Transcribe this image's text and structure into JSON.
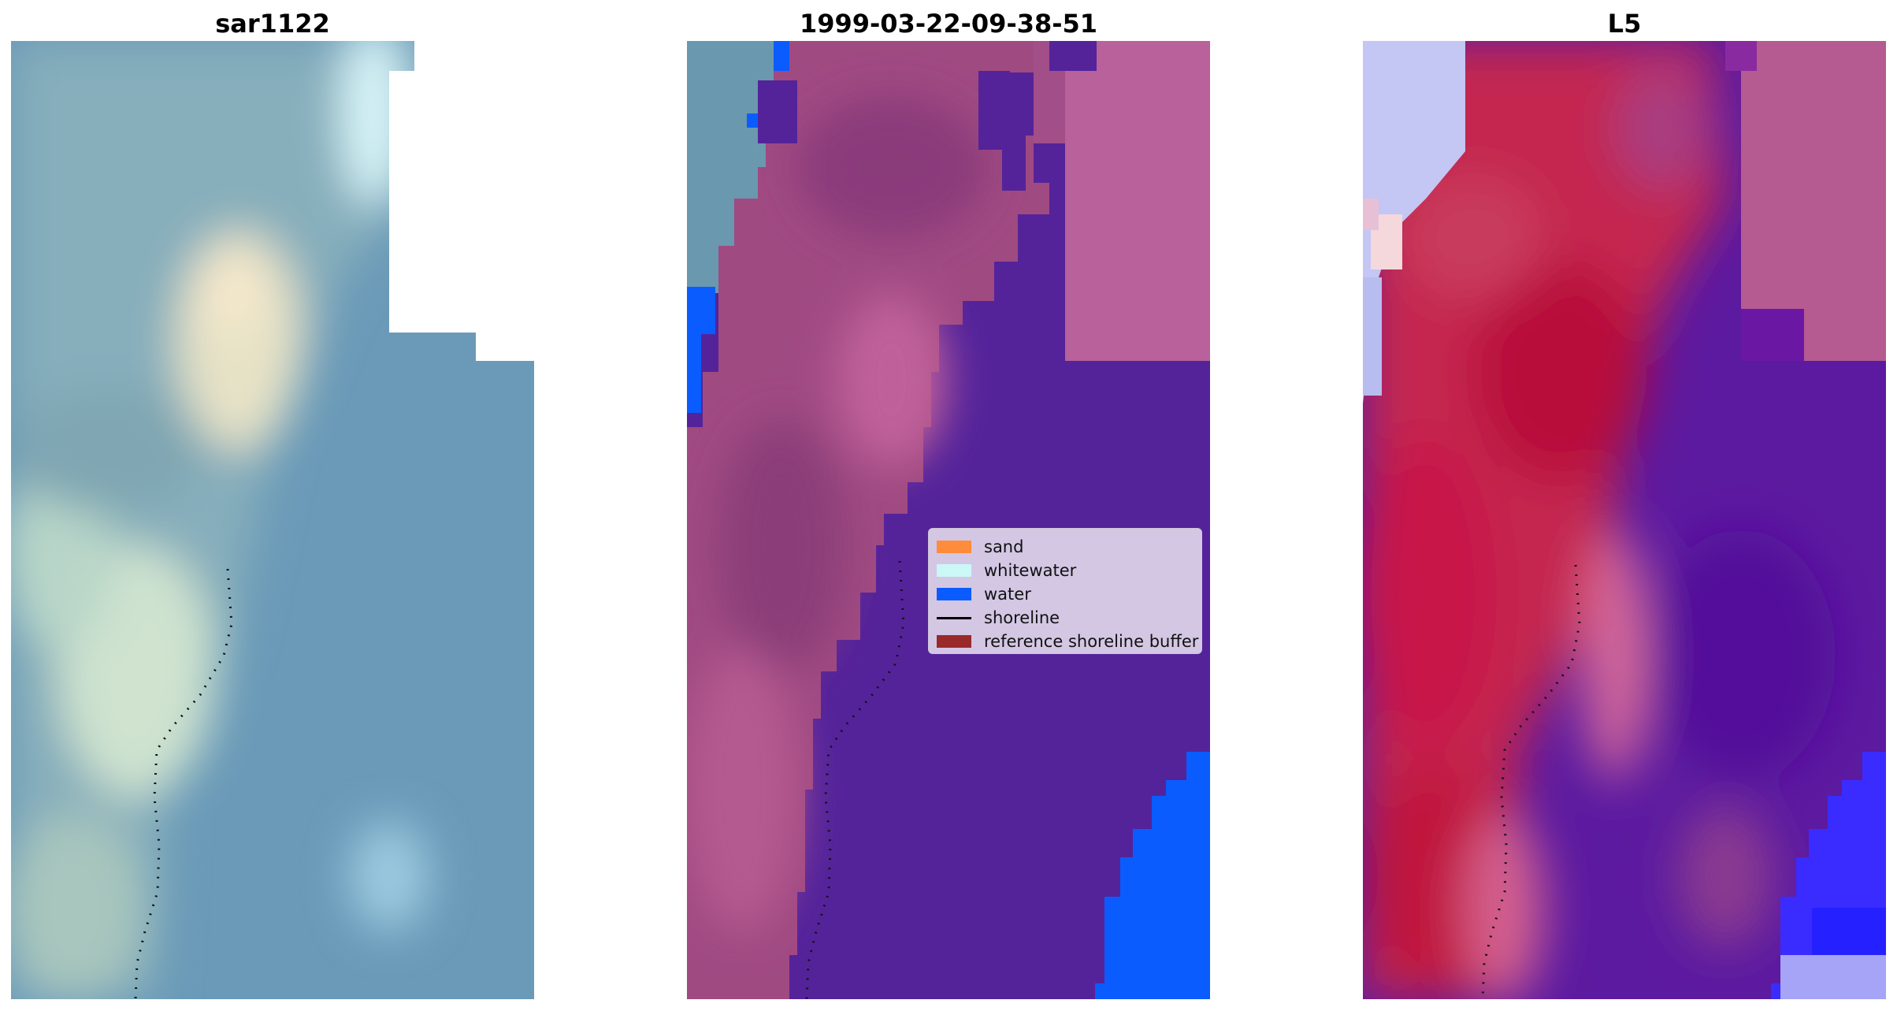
{
  "panels": [
    {
      "title": "sar1122"
    },
    {
      "title": "1999-03-22-09-38-51"
    },
    {
      "title": "L5"
    }
  ],
  "legend": {
    "items": [
      {
        "label": "sand",
        "color": "#ff8c3a",
        "kind": "patch"
      },
      {
        "label": "whitewater",
        "color": "#ccf7f7",
        "kind": "patch"
      },
      {
        "label": "water",
        "color": "#0a5cff",
        "kind": "patch"
      },
      {
        "label": "shoreline",
        "color": "#000000",
        "kind": "line"
      },
      {
        "label": "reference shoreline buffer",
        "color": "#9a2a2a",
        "kind": "patch"
      }
    ]
  },
  "colors": {
    "rgb_water": "#6a9ab8",
    "rgb_land": "#8fb5b8",
    "rgb_sand": "#efe7cc",
    "class_land_pink": "#b5588f",
    "class_water_purple": "#54239a",
    "class_ocean_blue": "#0a5cff",
    "index_red": "#c0143c",
    "index_purple": "#5c0f9e",
    "index_blue": "#2020ff"
  }
}
